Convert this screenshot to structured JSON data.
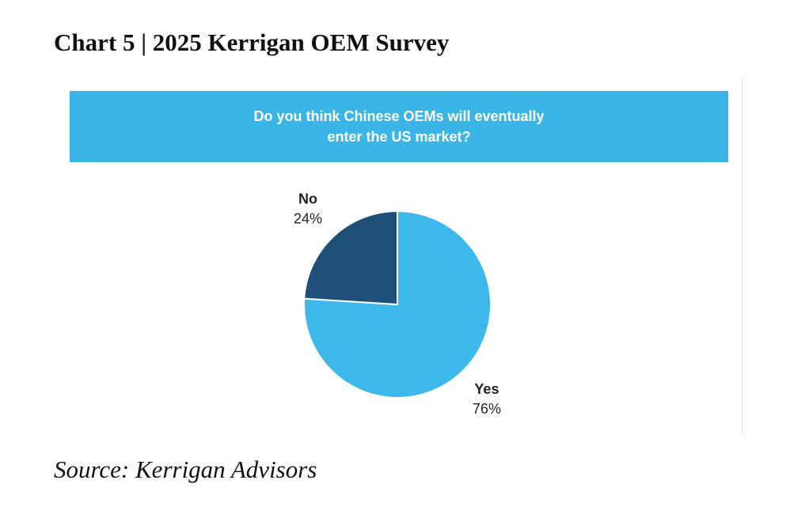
{
  "chart_data": {
    "type": "pie",
    "title": "Chart 5 | 2025 Kerrigan OEM Survey",
    "subtitle": "Do you think Chinese OEMs will eventually enter the US market?",
    "source": "Source: Kerrigan Advisors",
    "categories": [
      "Yes",
      "No"
    ],
    "values": [
      76,
      24
    ],
    "value_labels": [
      "76%",
      "24%"
    ],
    "colors": [
      "#3cb8ea",
      "#1f4e79"
    ]
  }
}
